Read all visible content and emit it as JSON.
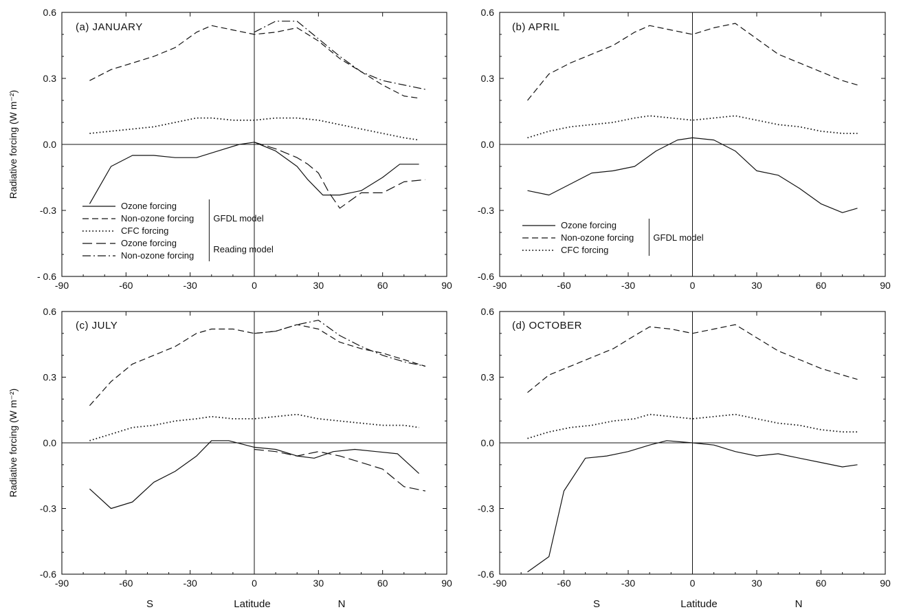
{
  "figure": {
    "x_axis_label": "Latitude",
    "x_south": "S",
    "x_north": "N",
    "y_axis_label": "Radiative forcing (W m⁻²)"
  },
  "chart_data": [
    {
      "panel": "a",
      "type": "line",
      "title": "(a)  JANUARY",
      "xlabel": "",
      "ylabel": "Radiative forcing (W m⁻²)",
      "xlim": [
        -90,
        90
      ],
      "ylim": [
        -0.6,
        0.6
      ],
      "xticks": [
        -90,
        -60,
        -30,
        0,
        30,
        60,
        90
      ],
      "yticks": [
        -0.6,
        -0.3,
        0.0,
        0.3,
        0.6
      ],
      "ytick_labels": [
        "- 0.6",
        "-0.3",
        "0.0",
        "0.3",
        "0.6"
      ],
      "grid": false,
      "legend": {
        "position": "bottom-left",
        "entries": [
          {
            "label": "Ozone forcing",
            "style": "solid"
          },
          {
            "label": "Non-ozone forcing",
            "style": "dashed"
          },
          {
            "label": "CFC forcing",
            "style": "dotted"
          },
          {
            "label": "Ozone forcing",
            "style": "longdash"
          },
          {
            "label": "Non-ozone forcing",
            "style": "dashdot"
          }
        ],
        "groups": [
          {
            "label": "GFDL model",
            "entries": [
              0,
              1,
              2
            ]
          },
          {
            "label": "Reading model",
            "entries": [
              3,
              4
            ]
          }
        ]
      },
      "series": [
        {
          "key": "gfdl_ozone",
          "style": "solid",
          "x": [
            -77,
            -67,
            -57,
            -47,
            -37,
            -27,
            -17,
            -7,
            0,
            10,
            20,
            25,
            32,
            40,
            50,
            60,
            68,
            77
          ],
          "y": [
            -0.27,
            -0.1,
            -0.05,
            -0.05,
            -0.06,
            -0.06,
            -0.03,
            0.0,
            0.01,
            -0.03,
            -0.1,
            -0.16,
            -0.23,
            -0.23,
            -0.21,
            -0.15,
            -0.09,
            -0.09
          ]
        },
        {
          "key": "gfdl_nonozone",
          "style": "dashed",
          "x": [
            -77,
            -67,
            -57,
            -47,
            -37,
            -27,
            -20,
            -10,
            0,
            10,
            20,
            30,
            40,
            50,
            60,
            70,
            77
          ],
          "y": [
            0.29,
            0.34,
            0.37,
            0.4,
            0.44,
            0.51,
            0.54,
            0.52,
            0.5,
            0.51,
            0.53,
            0.47,
            0.39,
            0.33,
            0.27,
            0.22,
            0.21
          ]
        },
        {
          "key": "gfdl_cfc",
          "style": "dotted",
          "x": [
            -77,
            -67,
            -57,
            -47,
            -37,
            -27,
            -20,
            -10,
            0,
            10,
            20,
            30,
            40,
            50,
            60,
            70,
            77
          ],
          "y": [
            0.05,
            0.06,
            0.07,
            0.08,
            0.1,
            0.12,
            0.12,
            0.11,
            0.11,
            0.12,
            0.12,
            0.11,
            0.09,
            0.07,
            0.05,
            0.03,
            0.02
          ]
        },
        {
          "key": "reading_ozone",
          "style": "longdash",
          "x": [
            0,
            10,
            20,
            25,
            30,
            35,
            40,
            50,
            60,
            70,
            80
          ],
          "y": [
            0.01,
            -0.02,
            -0.06,
            -0.09,
            -0.13,
            -0.22,
            -0.29,
            -0.22,
            -0.22,
            -0.17,
            -0.16
          ]
        },
        {
          "key": "reading_nonozone",
          "style": "dashdot",
          "x": [
            0,
            10,
            20,
            30,
            40,
            50,
            60,
            70,
            80
          ],
          "y": [
            0.51,
            0.56,
            0.56,
            0.48,
            0.4,
            0.33,
            0.29,
            0.27,
            0.25
          ]
        }
      ]
    },
    {
      "panel": "b",
      "type": "line",
      "title": "(b)  APRIL",
      "xlabel": "",
      "ylabel": "",
      "xlim": [
        -90,
        90
      ],
      "ylim": [
        -0.6,
        0.6
      ],
      "xticks": [
        -90,
        -60,
        -30,
        0,
        30,
        60,
        90
      ],
      "yticks": [
        -0.6,
        -0.3,
        0.0,
        0.3,
        0.6
      ],
      "ytick_labels": [
        "-0.6",
        "-0.3",
        "0.0",
        "0.3",
        "0.6"
      ],
      "grid": false,
      "legend": {
        "position": "bottom-left",
        "entries": [
          {
            "label": "Ozone forcing",
            "style": "solid"
          },
          {
            "label": "Non-ozone forcing",
            "style": "dashed"
          },
          {
            "label": "CFC forcing",
            "style": "dotted"
          }
        ],
        "groups": [
          {
            "label": "GFDL model",
            "entries": [
              0,
              1,
              2
            ]
          }
        ]
      },
      "series": [
        {
          "key": "gfdl_ozone",
          "style": "solid",
          "x": [
            -77,
            -67,
            -57,
            -47,
            -37,
            -27,
            -17,
            -7,
            0,
            10,
            20,
            30,
            40,
            50,
            60,
            70,
            77
          ],
          "y": [
            -0.21,
            -0.23,
            -0.18,
            -0.13,
            -0.12,
            -0.1,
            -0.03,
            0.02,
            0.03,
            0.02,
            -0.03,
            -0.12,
            -0.14,
            -0.2,
            -0.27,
            -0.31,
            -0.29
          ]
        },
        {
          "key": "gfdl_nonozone",
          "style": "dashed",
          "x": [
            -77,
            -67,
            -57,
            -47,
            -37,
            -27,
            -20,
            -10,
            0,
            10,
            20,
            30,
            40,
            50,
            60,
            70,
            77
          ],
          "y": [
            0.2,
            0.32,
            0.37,
            0.41,
            0.45,
            0.51,
            0.54,
            0.52,
            0.5,
            0.53,
            0.55,
            0.48,
            0.41,
            0.37,
            0.33,
            0.29,
            0.27
          ]
        },
        {
          "key": "gfdl_cfc",
          "style": "dotted",
          "x": [
            -77,
            -67,
            -57,
            -47,
            -37,
            -27,
            -20,
            -10,
            0,
            10,
            20,
            30,
            40,
            50,
            60,
            70,
            77
          ],
          "y": [
            0.03,
            0.06,
            0.08,
            0.09,
            0.1,
            0.12,
            0.13,
            0.12,
            0.11,
            0.12,
            0.13,
            0.11,
            0.09,
            0.08,
            0.06,
            0.05,
            0.05
          ]
        }
      ]
    },
    {
      "panel": "c",
      "type": "line",
      "title": "(c)  JULY",
      "xlabel": "",
      "ylabel": "Radiative forcing (W m⁻²)",
      "xlim": [
        -90,
        90
      ],
      "ylim": [
        -0.6,
        0.6
      ],
      "xticks": [
        -90,
        -60,
        -30,
        0,
        30,
        60,
        90
      ],
      "yticks": [
        -0.6,
        -0.3,
        0.0,
        0.3,
        0.6
      ],
      "ytick_labels": [
        "-0.6",
        "-0.3",
        "0.0",
        "0.3",
        "0.6"
      ],
      "grid": false,
      "series": [
        {
          "key": "gfdl_ozone",
          "style": "solid",
          "x": [
            -77,
            -67,
            -57,
            -47,
            -37,
            -27,
            -20,
            -12,
            0,
            10,
            20,
            28,
            37,
            47,
            57,
            67,
            77
          ],
          "y": [
            -0.21,
            -0.3,
            -0.27,
            -0.18,
            -0.13,
            -0.06,
            0.01,
            0.01,
            -0.02,
            -0.03,
            -0.06,
            -0.07,
            -0.04,
            -0.03,
            -0.04,
            -0.05,
            -0.14
          ]
        },
        {
          "key": "gfdl_nonozone",
          "style": "dashed",
          "x": [
            -77,
            -67,
            -57,
            -47,
            -37,
            -27,
            -20,
            -10,
            0,
            10,
            20,
            30,
            40,
            50,
            60,
            70,
            80
          ],
          "y": [
            0.17,
            0.28,
            0.36,
            0.4,
            0.44,
            0.5,
            0.52,
            0.52,
            0.5,
            0.51,
            0.54,
            0.52,
            0.46,
            0.43,
            0.41,
            0.38,
            0.35
          ]
        },
        {
          "key": "gfdl_cfc",
          "style": "dotted",
          "x": [
            -77,
            -67,
            -57,
            -47,
            -37,
            -27,
            -20,
            -10,
            0,
            10,
            20,
            30,
            40,
            50,
            60,
            70,
            77
          ],
          "y": [
            0.01,
            0.04,
            0.07,
            0.08,
            0.1,
            0.11,
            0.12,
            0.11,
            0.11,
            0.12,
            0.13,
            0.11,
            0.1,
            0.09,
            0.08,
            0.08,
            0.07
          ]
        },
        {
          "key": "reading_ozone",
          "style": "longdash",
          "x": [
            0,
            10,
            20,
            30,
            40,
            50,
            60,
            70,
            80
          ],
          "y": [
            -0.03,
            -0.04,
            -0.06,
            -0.04,
            -0.06,
            -0.09,
            -0.12,
            -0.2,
            -0.22
          ]
        },
        {
          "key": "reading_nonozone",
          "style": "dashdot",
          "x": [
            0,
            10,
            20,
            30,
            40,
            50,
            60,
            70,
            80
          ],
          "y": [
            0.5,
            0.51,
            0.54,
            0.56,
            0.49,
            0.44,
            0.4,
            0.37,
            0.35
          ]
        }
      ]
    },
    {
      "panel": "d",
      "type": "line",
      "title": "(d)  OCTOBER",
      "xlabel": "",
      "ylabel": "",
      "xlim": [
        -90,
        90
      ],
      "ylim": [
        -0.6,
        0.6
      ],
      "xticks": [
        -90,
        -60,
        -30,
        0,
        30,
        60,
        90
      ],
      "yticks": [
        -0.6,
        -0.3,
        0.0,
        0.3,
        0.6
      ],
      "ytick_labels": [
        "-0.6",
        "-0.3",
        "0.0",
        "0.3",
        "0.6"
      ],
      "grid": false,
      "series": [
        {
          "key": "gfdl_ozone",
          "style": "solid",
          "x": [
            -77,
            -67,
            -60,
            -50,
            -40,
            -30,
            -20,
            -12,
            0,
            10,
            20,
            30,
            40,
            50,
            60,
            70,
            77
          ],
          "y": [
            -0.59,
            -0.52,
            -0.22,
            -0.07,
            -0.06,
            -0.04,
            -0.01,
            0.01,
            0.0,
            -0.01,
            -0.04,
            -0.06,
            -0.05,
            -0.07,
            -0.09,
            -0.11,
            -0.1
          ]
        },
        {
          "key": "gfdl_nonozone",
          "style": "dashed",
          "x": [
            -77,
            -67,
            -57,
            -47,
            -37,
            -27,
            -20,
            -10,
            0,
            10,
            20,
            30,
            40,
            50,
            60,
            70,
            77
          ],
          "y": [
            0.23,
            0.31,
            0.35,
            0.39,
            0.43,
            0.49,
            0.53,
            0.52,
            0.5,
            0.52,
            0.54,
            0.48,
            0.42,
            0.38,
            0.34,
            0.31,
            0.29
          ]
        },
        {
          "key": "gfdl_cfc",
          "style": "dotted",
          "x": [
            -77,
            -67,
            -57,
            -47,
            -37,
            -27,
            -20,
            -10,
            0,
            10,
            20,
            30,
            40,
            50,
            60,
            70,
            77
          ],
          "y": [
            0.02,
            0.05,
            0.07,
            0.08,
            0.1,
            0.11,
            0.13,
            0.12,
            0.11,
            0.12,
            0.13,
            0.11,
            0.09,
            0.08,
            0.06,
            0.05,
            0.05
          ]
        }
      ]
    }
  ]
}
